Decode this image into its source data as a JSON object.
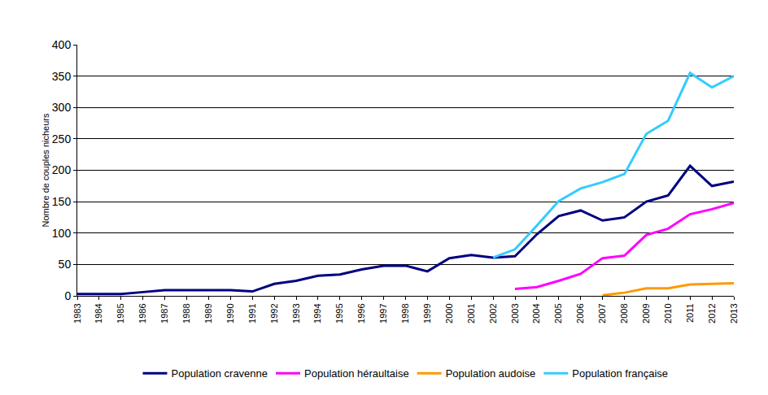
{
  "chart_data": {
    "type": "line",
    "y_label": "Nombre de couples nicheurs",
    "categories": [
      "1983",
      "1984",
      "1985",
      "1986",
      "1987",
      "1988",
      "1989",
      "1990",
      "1991",
      "1992",
      "1993",
      "1994",
      "1995",
      "1996",
      "1997",
      "1998",
      "1999",
      "2000",
      "2001",
      "2002",
      "2003",
      "2004",
      "2005",
      "2006",
      "2007",
      "2008",
      "2009",
      "2010",
      "2011",
      "2012",
      "2013"
    ],
    "series": [
      {
        "name": "Population cravenne",
        "color": "#000080",
        "values": [
          3,
          3,
          3,
          6,
          9,
          9,
          9,
          9,
          7,
          19,
          24,
          32,
          34,
          42,
          48,
          48,
          39,
          60,
          65,
          61,
          63,
          98,
          127,
          136,
          120,
          125,
          150,
          160,
          207,
          175,
          182
        ]
      },
      {
        "name": "Population héraultaise",
        "color": "#ff00ff",
        "values": [
          null,
          null,
          null,
          null,
          null,
          null,
          null,
          null,
          null,
          null,
          null,
          null,
          null,
          null,
          null,
          null,
          null,
          null,
          null,
          null,
          11,
          14,
          24,
          35,
          60,
          64,
          97,
          107,
          130,
          138,
          148
        ]
      },
      {
        "name": "Population audoise",
        "color": "#ff9900",
        "values": [
          null,
          null,
          null,
          null,
          null,
          null,
          null,
          null,
          null,
          null,
          null,
          null,
          null,
          null,
          null,
          null,
          null,
          null,
          null,
          null,
          null,
          null,
          null,
          null,
          1,
          5,
          12,
          12,
          18,
          19,
          20
        ]
      },
      {
        "name": "Population française",
        "color": "#33ccff",
        "values": [
          null,
          null,
          null,
          null,
          null,
          null,
          null,
          null,
          null,
          null,
          null,
          null,
          null,
          null,
          null,
          null,
          null,
          null,
          null,
          61,
          74,
          112,
          151,
          171,
          181,
          194,
          258,
          279,
          355,
          332,
          350
        ]
      }
    ],
    "ylim": [
      0,
      400
    ],
    "yticks": [
      0,
      50,
      100,
      150,
      200,
      250,
      300,
      350,
      400
    ],
    "grid": true,
    "legend": "bottom",
    "line_style": "solid"
  }
}
